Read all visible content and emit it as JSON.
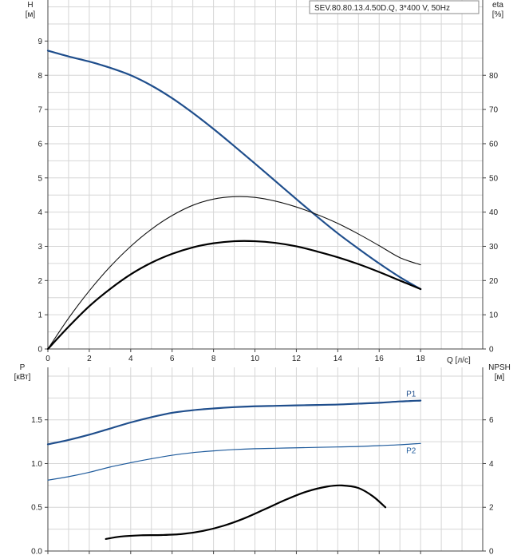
{
  "chart_data": [
    {
      "type": "line",
      "title": "",
      "legend_box": "SEV.80.80.13.4.50D.Q, 3*400 V, 50Hz",
      "xlabel": "Q [л/с]",
      "x_ticks": [
        0,
        2,
        4,
        6,
        8,
        10,
        12,
        14,
        16,
        18
      ],
      "xlim": [
        0,
        21
      ],
      "left_axis": {
        "label_top": "H",
        "label_unit": "[м]",
        "ylim": [
          0,
          10.2
        ],
        "ticks": [
          0,
          1,
          2,
          3,
          4,
          5,
          6,
          7,
          8,
          9
        ]
      },
      "right_axis": {
        "label_top": "eta",
        "label_unit": "[%]",
        "ylim": [
          0,
          102
        ],
        "ticks": [
          0,
          10,
          20,
          30,
          40,
          50,
          60,
          70,
          80
        ]
      },
      "series": [
        {
          "key": "H",
          "axis": "left",
          "color": "#1f4e8c",
          "x": [
            0,
            1,
            2,
            3,
            4,
            5,
            6,
            7,
            8,
            9,
            10,
            11,
            12,
            13,
            14,
            15,
            16,
            17,
            18
          ],
          "y": [
            8.72,
            8.55,
            8.4,
            8.22,
            8.0,
            7.7,
            7.33,
            6.9,
            6.43,
            5.93,
            5.42,
            4.9,
            4.38,
            3.87,
            3.38,
            2.93,
            2.5,
            2.1,
            1.75
          ]
        },
        {
          "key": "eta_total",
          "axis": "right",
          "color": "#111111",
          "x": [
            0,
            1,
            2,
            3,
            4,
            5,
            6,
            7,
            8,
            9,
            10,
            11,
            12,
            13,
            14,
            15,
            16,
            17,
            18
          ],
          "y": [
            0,
            9,
            17,
            24,
            30,
            35,
            39,
            42,
            43.8,
            44.5,
            44.3,
            43.2,
            41.5,
            39.3,
            36.7,
            33.6,
            30.2,
            26.7,
            24.6
          ]
        },
        {
          "key": "eta_hydr",
          "axis": "right",
          "color": "#000000",
          "x": [
            0,
            1,
            2,
            3,
            4,
            5,
            6,
            7,
            8,
            9,
            10,
            11,
            12,
            13,
            14,
            15,
            16,
            17,
            18
          ],
          "y": [
            0,
            6.5,
            12.5,
            17.5,
            21.8,
            25.2,
            27.8,
            29.7,
            30.9,
            31.5,
            31.5,
            31.0,
            30.0,
            28.5,
            26.8,
            24.8,
            22.5,
            20.0,
            17.5
          ]
        }
      ]
    },
    {
      "type": "line",
      "title": "",
      "x_ticks": [
        0,
        2,
        4,
        6,
        8,
        10,
        12,
        14,
        16,
        18
      ],
      "xlim": [
        0,
        21
      ],
      "left_axis": {
        "label_top": "P",
        "label_unit": "[кВт]",
        "ylim": [
          0,
          2.1
        ],
        "ticks": [
          0.0,
          0.5,
          1.0,
          1.5
        ],
        "tick_labels": [
          "0.0",
          "0.5",
          "1.0",
          "1.5"
        ]
      },
      "right_axis": {
        "label_top": "NPSH",
        "label_unit": "[м]",
        "ylim": [
          0,
          8.4
        ],
        "ticks": [
          0,
          2,
          4,
          6
        ]
      },
      "series": [
        {
          "key": "P1",
          "name": "P1",
          "axis": "left",
          "color": "#1f4e8c",
          "x": [
            0,
            1,
            2,
            3,
            4,
            5,
            6,
            7,
            8,
            9,
            10,
            11,
            12,
            13,
            14,
            15,
            16,
            17,
            18
          ],
          "y": [
            1.22,
            1.27,
            1.33,
            1.4,
            1.47,
            1.53,
            1.58,
            1.61,
            1.63,
            1.645,
            1.655,
            1.66,
            1.665,
            1.67,
            1.675,
            1.685,
            1.695,
            1.71,
            1.72
          ]
        },
        {
          "key": "P2",
          "name": "P2",
          "axis": "left",
          "color": "#1f5b9c",
          "x": [
            0,
            1,
            2,
            3,
            4,
            5,
            6,
            7,
            8,
            9,
            10,
            11,
            12,
            13,
            14,
            15,
            16,
            17,
            18
          ],
          "y": [
            0.81,
            0.85,
            0.9,
            0.96,
            1.01,
            1.055,
            1.095,
            1.125,
            1.145,
            1.16,
            1.17,
            1.175,
            1.18,
            1.185,
            1.19,
            1.195,
            1.205,
            1.215,
            1.23
          ]
        },
        {
          "key": "NPSH",
          "axis": "right",
          "color": "#000000",
          "x": [
            2.8,
            3.5,
            4.5,
            5.5,
            6.5,
            7.5,
            8.5,
            9.5,
            10.5,
            11.5,
            12.5,
            13.5,
            14.2,
            15,
            15.7,
            16.3
          ],
          "y": [
            0.55,
            0.66,
            0.72,
            0.73,
            0.78,
            0.92,
            1.16,
            1.5,
            1.92,
            2.35,
            2.72,
            2.95,
            3.0,
            2.88,
            2.5,
            2.0
          ]
        }
      ]
    }
  ]
}
